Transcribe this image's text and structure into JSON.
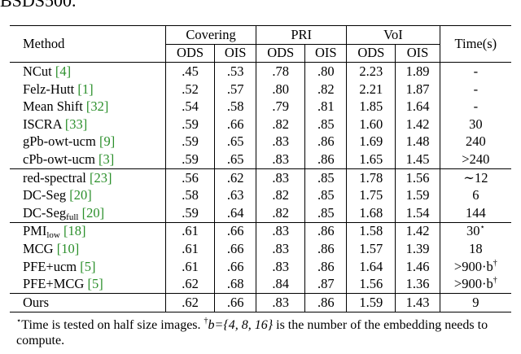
{
  "caption_fragment": "BSDS500.",
  "table": {
    "header": {
      "method": "Method",
      "groups": [
        "Covering",
        "PRI",
        "VoI"
      ],
      "time": "Time(s)",
      "sub": [
        "ODS",
        "OIS",
        "ODS",
        "OIS",
        "ODS",
        "OIS"
      ]
    },
    "groups": [
      {
        "rows": [
          {
            "method": "NCut",
            "sub": "",
            "cite": "[4]",
            "values": [
              ".45",
              ".53",
              ".78",
              ".80",
              "2.23",
              "1.89"
            ],
            "time": "-",
            "time_sup": ""
          },
          {
            "method": "Felz-Hutt",
            "sub": "",
            "cite": "[1]",
            "values": [
              ".52",
              ".57",
              ".80",
              ".82",
              "2.21",
              "1.87"
            ],
            "time": "-",
            "time_sup": ""
          },
          {
            "method": "Mean Shift",
            "sub": "",
            "cite": "[32]",
            "values": [
              ".54",
              ".58",
              ".79",
              ".81",
              "1.85",
              "1.64"
            ],
            "time": "-",
            "time_sup": ""
          },
          {
            "method": "ISCRA",
            "sub": "",
            "cite": "[33]",
            "values": [
              ".59",
              ".66",
              ".82",
              ".85",
              "1.60",
              "1.42"
            ],
            "time": "30",
            "time_sup": ""
          },
          {
            "method": "gPb-owt-ucm",
            "sub": "",
            "cite": "[9]",
            "values": [
              ".59",
              ".65",
              ".83",
              ".86",
              "1.69",
              "1.48"
            ],
            "time": "240",
            "time_sup": ""
          },
          {
            "method": "cPb-owt-ucm",
            "sub": "",
            "cite": "[3]",
            "values": [
              ".59",
              ".65",
              ".83",
              ".86",
              "1.65",
              "1.45"
            ],
            "time": ">240",
            "time_sup": ""
          }
        ]
      },
      {
        "rows": [
          {
            "method": "red-spectral",
            "sub": "",
            "cite": "[23]",
            "values": [
              ".56",
              ".62",
              ".83",
              ".85",
              "1.78",
              "1.56"
            ],
            "time": "∼12",
            "time_sup": ""
          },
          {
            "method": "DC-Seg",
            "sub": "",
            "cite": "[20]",
            "values": [
              ".58",
              ".63",
              ".82",
              ".85",
              "1.75",
              "1.59"
            ],
            "time": "6",
            "time_sup": ""
          },
          {
            "method": "DC-Seg",
            "sub": "full",
            "cite": "[20]",
            "values": [
              ".59",
              ".64",
              ".82",
              ".85",
              "1.68",
              "1.54"
            ],
            "time": "144",
            "time_sup": ""
          }
        ]
      },
      {
        "rows": [
          {
            "method": "PMI",
            "sub": "low",
            "cite": "[18]",
            "values": [
              ".61",
              ".66",
              ".83",
              ".86",
              "1.58",
              "1.42"
            ],
            "time": "30",
            "time_sup": "⋆"
          },
          {
            "method": "MCG",
            "sub": "",
            "cite": "[10]",
            "values": [
              ".61",
              ".66",
              ".83",
              ".86",
              "1.57",
              "1.39"
            ],
            "time": "18",
            "time_sup": ""
          },
          {
            "method": "PFE+ucm",
            "sub": "",
            "cite": "[5]",
            "values": [
              ".61",
              ".66",
              ".83",
              ".86",
              "1.64",
              "1.46"
            ],
            "time": ">900·b",
            "time_sup": "†"
          },
          {
            "method": "PFE+MCG",
            "sub": "",
            "cite": "[5]",
            "values": [
              ".62",
              ".68",
              ".84",
              ".87",
              "1.56",
              "1.36"
            ],
            "time": ">900·b",
            "time_sup": "†"
          }
        ]
      },
      {
        "rows": [
          {
            "method": "Ours",
            "sub": "",
            "cite": "",
            "values": [
              ".62",
              ".66",
              ".83",
              ".86",
              "1.59",
              "1.43"
            ],
            "time": "9",
            "time_sup": ""
          }
        ]
      }
    ]
  },
  "footnote": {
    "star": "⋆",
    "part1": "Time is tested on half size images.",
    "dagger": "†",
    "math": "b={4, 8, 16}",
    "part2": "is the number of the embedding needs to compute."
  }
}
